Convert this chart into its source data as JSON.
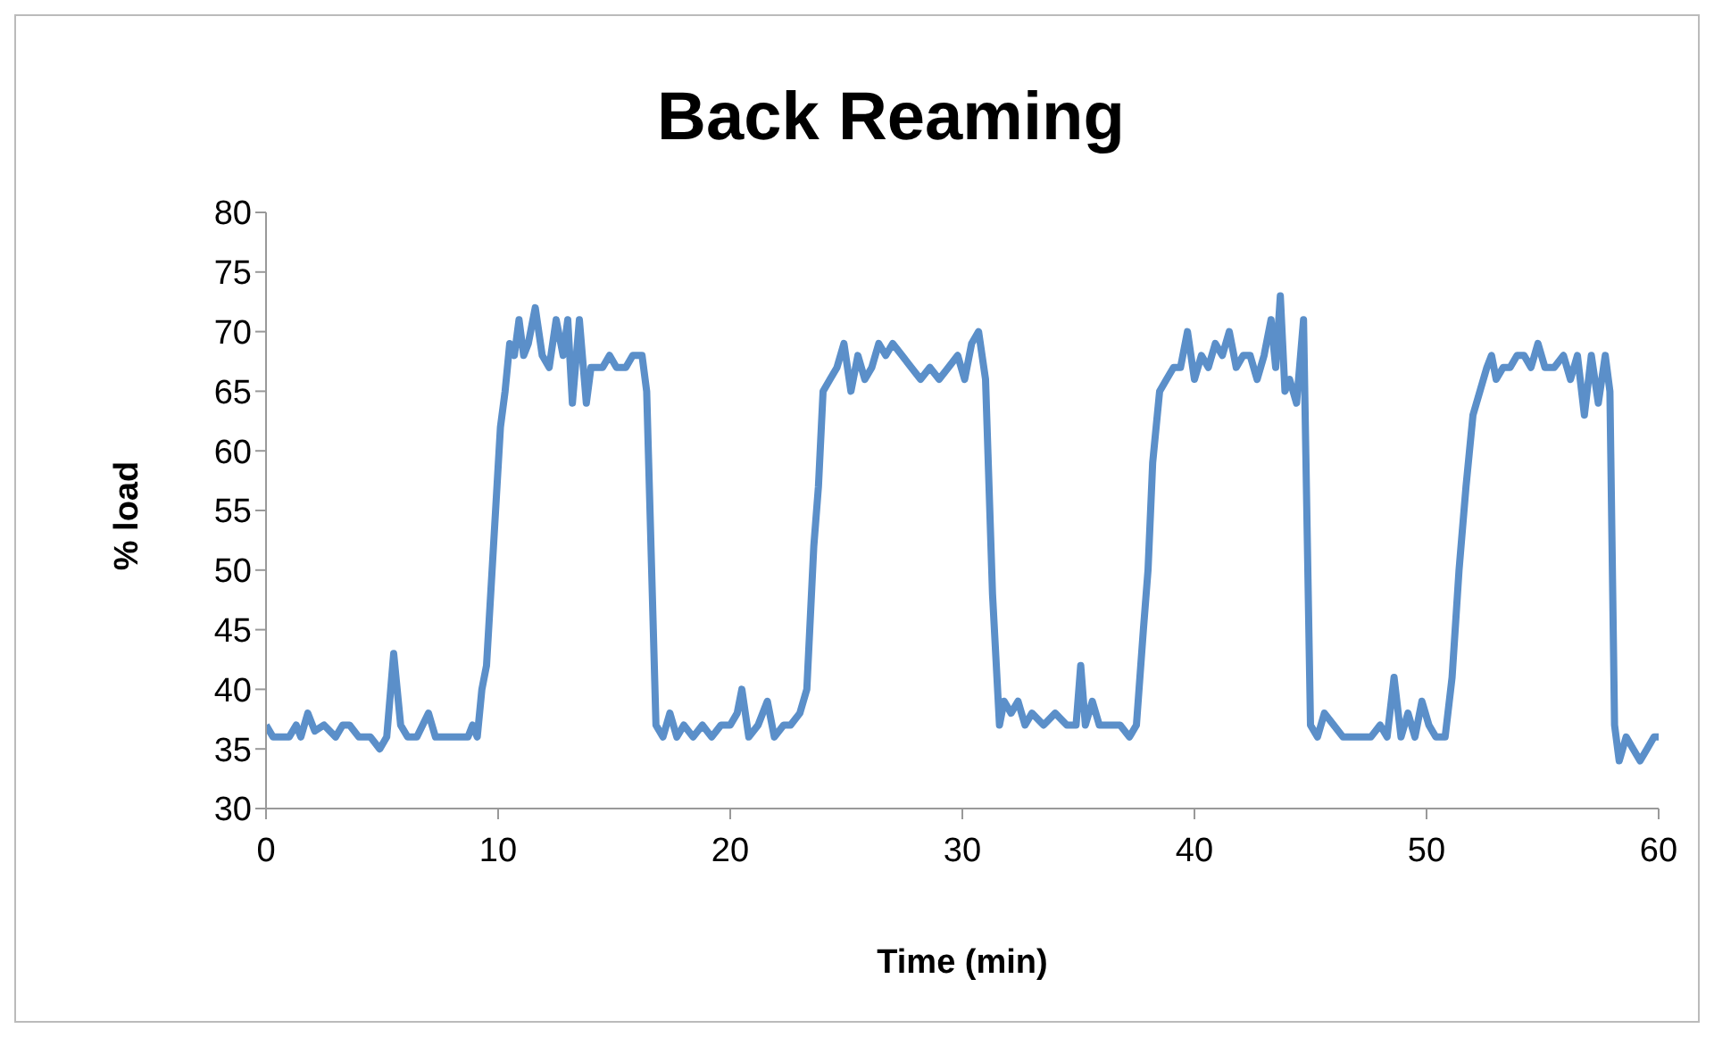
{
  "chart_data": {
    "type": "line",
    "title": "Back Reaming",
    "xlabel": "Time (min)",
    "ylabel": "% load",
    "x": [
      0,
      0.3,
      1,
      1.3,
      1.5,
      1.8,
      2.1,
      2.5,
      3,
      3.3,
      3.6,
      4,
      4.5,
      4.9,
      5.2,
      5.5,
      5.8,
      6.1,
      6.5,
      7,
      7.3,
      8,
      8.7,
      8.9,
      9.1,
      9.3,
      9.5,
      9.8,
      10.1,
      10.3,
      10.5,
      10.7,
      10.9,
      11.1,
      11.3,
      11.6,
      11.9,
      12.2,
      12.5,
      12.8,
      13,
      13.2,
      13.5,
      13.8,
      14,
      14.5,
      14.8,
      15.1,
      15.5,
      15.8,
      16.2,
      16.4,
      16.8,
      17.1,
      17.4,
      17.7,
      18,
      18.4,
      18.8,
      19.2,
      19.6,
      20,
      20.3,
      20.5,
      20.8,
      21.2,
      21.6,
      21.9,
      22.3,
      22.6,
      23,
      23.3,
      23.6,
      23.8,
      24,
      24.3,
      24.6,
      24.9,
      25.2,
      25.5,
      25.8,
      26.1,
      26.4,
      26.7,
      27,
      27.4,
      27.8,
      28.2,
      28.6,
      29,
      29.4,
      29.8,
      30.1,
      30.4,
      30.7,
      31,
      31.3,
      31.6,
      31.8,
      32.1,
      32.4,
      32.7,
      33,
      33.5,
      34,
      34.5,
      34.9,
      35.1,
      35.3,
      35.6,
      35.9,
      36.3,
      36.8,
      37.2,
      37.5,
      37.8,
      38,
      38.2,
      38.5,
      38.8,
      39.1,
      39.4,
      39.7,
      40,
      40.3,
      40.6,
      40.9,
      41.2,
      41.5,
      41.8,
      42.1,
      42.4,
      42.7,
      43,
      43.3,
      43.5,
      43.7,
      43.9,
      44.1,
      44.4,
      44.7,
      45,
      45.3,
      45.6,
      46,
      46.4,
      47,
      47.6,
      48,
      48.3,
      48.6,
      48.9,
      49.2,
      49.5,
      49.8,
      50.1,
      50.4,
      50.8,
      51.1,
      51.4,
      51.7,
      52,
      52.3,
      52.6,
      52.8,
      53,
      53.3,
      53.6,
      53.9,
      54.2,
      54.5,
      54.8,
      55.1,
      55.5,
      55.9,
      56.2,
      56.5,
      56.8,
      57.1,
      57.4,
      57.7,
      57.9,
      58.1,
      58.3,
      58.6,
      58.9,
      59.2,
      59.5,
      59.8,
      60
    ],
    "series": [
      {
        "color": "#5b8fc9",
        "values": [
          37,
          36,
          36,
          37,
          36,
          38,
          36.5,
          37,
          36,
          37,
          37,
          36,
          36,
          35,
          36,
          43,
          37,
          36,
          36,
          38,
          36,
          36,
          36,
          37,
          36,
          40,
          42,
          52,
          62,
          65,
          69,
          68,
          71,
          68,
          69,
          72,
          68,
          67,
          71,
          68,
          71,
          64,
          71,
          64,
          67,
          67,
          68,
          67,
          67,
          68,
          68,
          65,
          37,
          36,
          38,
          36,
          37,
          36,
          37,
          36,
          37,
          37,
          38,
          40,
          36,
          37,
          39,
          36,
          37,
          37,
          38,
          40,
          52,
          57,
          65,
          66,
          67,
          69,
          65,
          68,
          66,
          67,
          69,
          68,
          69,
          68,
          67,
          66,
          67,
          66,
          67,
          68,
          66,
          69,
          70,
          66,
          48,
          37,
          39,
          38,
          39,
          37,
          38,
          37,
          38,
          37,
          37,
          42,
          37,
          39,
          37,
          37,
          37,
          36,
          37,
          45,
          50,
          59,
          65,
          66,
          67,
          67,
          70,
          66,
          68,
          67,
          69,
          68,
          70,
          67,
          68,
          68,
          66,
          68,
          71,
          67,
          73,
          65,
          66,
          64,
          71,
          37,
          36,
          38,
          37,
          36,
          36,
          36,
          37,
          36,
          41,
          36,
          38,
          36,
          39,
          37,
          36,
          36,
          41,
          50,
          57,
          63,
          65,
          67,
          68,
          66,
          67,
          67,
          68,
          68,
          67,
          69,
          67,
          67,
          68,
          66,
          68,
          63,
          68,
          64,
          68,
          65,
          37,
          34,
          36,
          35,
          34,
          35,
          36,
          36
        ]
      }
    ],
    "xlim": [
      0,
      60
    ],
    "xticks": [
      0,
      10,
      20,
      30,
      40,
      50,
      60
    ],
    "ylim": [
      30,
      80
    ],
    "yticks": [
      30,
      35,
      40,
      45,
      50,
      55,
      60,
      65,
      70,
      75,
      80
    ],
    "grid": false,
    "legend": false,
    "marker": "none",
    "line_style": "solid"
  }
}
